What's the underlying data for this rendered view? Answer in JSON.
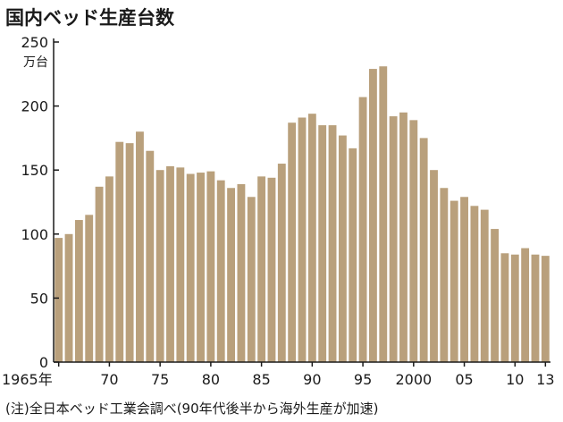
{
  "title": "国内ベッド生産台数",
  "note": "(注)全日本ベッド工業会調べ(90年代後半から海外生産が加速)",
  "chart_data": {
    "type": "bar",
    "title": "国内ベッド生産台数",
    "y_unit": "万台",
    "ylim": [
      0,
      250
    ],
    "yticks": [
      0,
      50,
      100,
      150,
      200,
      250
    ],
    "x_tick_labels": [
      {
        "year": 1965,
        "label": "1965年"
      },
      {
        "year": 1970,
        "label": "70"
      },
      {
        "year": 1975,
        "label": "75"
      },
      {
        "year": 1980,
        "label": "80"
      },
      {
        "year": 1985,
        "label": "85"
      },
      {
        "year": 1990,
        "label": "90"
      },
      {
        "year": 1995,
        "label": "95"
      },
      {
        "year": 2000,
        "label": "2000"
      },
      {
        "year": 2005,
        "label": "05"
      },
      {
        "year": 2010,
        "label": "10"
      },
      {
        "year": 2013,
        "label": "13"
      }
    ],
    "bar_color": "#b9a07c",
    "grid": false,
    "legend": "none",
    "x": [
      1965,
      1966,
      1967,
      1968,
      1969,
      1970,
      1971,
      1972,
      1973,
      1974,
      1975,
      1976,
      1977,
      1978,
      1979,
      1980,
      1981,
      1982,
      1983,
      1984,
      1985,
      1986,
      1987,
      1988,
      1989,
      1990,
      1991,
      1992,
      1993,
      1994,
      1995,
      1996,
      1997,
      1998,
      1999,
      2000,
      2001,
      2002,
      2003,
      2004,
      2005,
      2006,
      2007,
      2008,
      2009,
      2010,
      2011,
      2012,
      2013
    ],
    "values": [
      97,
      100,
      111,
      115,
      137,
      145,
      172,
      171,
      180,
      165,
      150,
      153,
      152,
      147,
      148,
      149,
      142,
      136,
      139,
      129,
      145,
      144,
      155,
      187,
      191,
      194,
      185,
      185,
      177,
      167,
      207,
      229,
      231,
      192,
      195,
      189,
      175,
      150,
      136,
      126,
      129,
      122,
      119,
      104,
      85,
      84,
      89,
      84,
      83
    ]
  }
}
